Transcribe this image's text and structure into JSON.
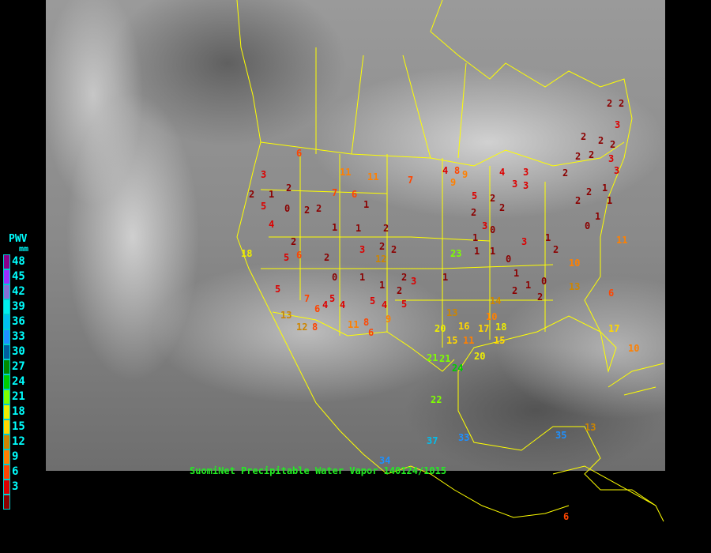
{
  "caption": "SuomiNet Precipitable Water Vapor 140124/1015",
  "legend": {
    "title": "PWV",
    "unit": "mm",
    "bins": [
      {
        "label": "48",
        "color": "#8b008b"
      },
      {
        "label": "45",
        "color": "#9b30ff"
      },
      {
        "label": "42",
        "color": "#8470d8"
      },
      {
        "label": "39",
        "color": "#00eeee"
      },
      {
        "label": "36",
        "color": "#00bfef"
      },
      {
        "label": "33",
        "color": "#1e90ff"
      },
      {
        "label": "30",
        "color": "#005f9f"
      },
      {
        "label": "27",
        "color": "#008b00"
      },
      {
        "label": "24",
        "color": "#00cd00"
      },
      {
        "label": "21",
        "color": "#7fff00"
      },
      {
        "label": "18",
        "color": "#eeee00"
      },
      {
        "label": "15",
        "color": "#ffd700"
      },
      {
        "label": "12",
        "color": "#cd8500"
      },
      {
        "label": "9",
        "color": "#ff8000"
      },
      {
        "label": "6",
        "color": "#ff4500"
      },
      {
        "label": "3",
        "color": "#dd0000"
      },
      {
        "label": "",
        "color": "#8b0000"
      }
    ]
  },
  "border_color": "#ffff00",
  "stations": [
    "2",
    "2",
    "3",
    "2",
    "2",
    "2",
    "2",
    "3",
    "3",
    "2",
    "4",
    "3",
    "3",
    "3",
    "2",
    "2",
    "2",
    "2",
    "1",
    "1",
    "2",
    "0",
    "1",
    "4",
    "2",
    "3",
    "1",
    "2",
    "0",
    "2",
    "8",
    "6",
    "11",
    "7",
    "11",
    "6",
    "5",
    "4",
    "1",
    "2",
    "1",
    "1",
    "2",
    "2",
    "0",
    "1",
    "3",
    "7",
    "9",
    "9",
    "5",
    "2",
    "2",
    "3",
    "2",
    "2",
    "1",
    "1",
    "0",
    "2",
    "1",
    "3",
    "12",
    "1",
    "2",
    "0",
    "1",
    "2",
    "3",
    "1",
    "23",
    "1",
    "1",
    "2",
    "10",
    "13",
    "2",
    "0",
    "5",
    "6",
    "10",
    "14",
    "11",
    "13",
    "5",
    "7",
    "5",
    "4",
    "4",
    "6",
    "5",
    "4",
    "5",
    "8",
    "6",
    "9",
    "12",
    "8",
    "13",
    "16",
    "17",
    "18",
    "20",
    "15",
    "11",
    "21",
    "22",
    "21",
    "24",
    "20",
    "15",
    "37",
    "33",
    "34",
    "35",
    "13",
    "10",
    "6",
    "6",
    "11",
    "18",
    "17"
  ]
}
